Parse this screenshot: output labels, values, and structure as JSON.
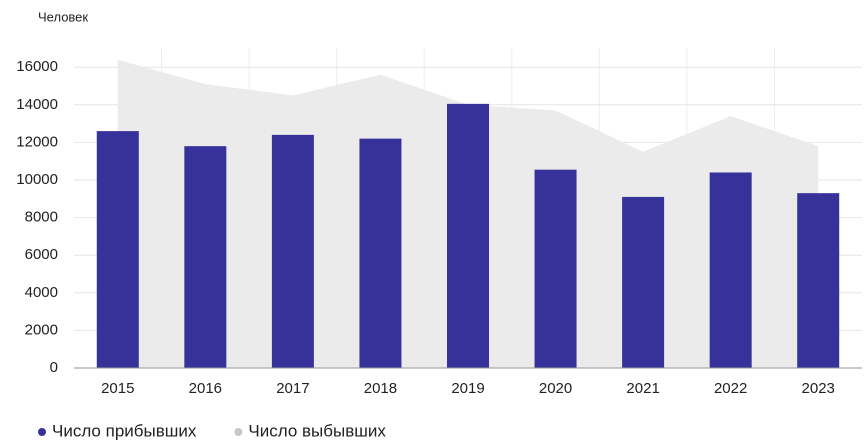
{
  "chart_data": {
    "type": "bar",
    "y_label": "Человек",
    "categories": [
      "2015",
      "2016",
      "2017",
      "2018",
      "2019",
      "2020",
      "2021",
      "2022",
      "2023"
    ],
    "series": [
      {
        "name": "Число прибывших",
        "type": "bar",
        "color": "#373299",
        "values": [
          12600,
          11800,
          12400,
          12200,
          14050,
          10550,
          9100,
          10400,
          9300
        ]
      },
      {
        "name": "Число выбывших",
        "type": "area",
        "color": "#ebebeb",
        "legend_color": "#c8c8c8",
        "values": [
          16400,
          15100,
          14500,
          15600,
          14000,
          13700,
          11500,
          13400,
          11800
        ]
      }
    ],
    "ylim": [
      0,
      17000
    ],
    "yticks": [
      0,
      2000,
      4000,
      6000,
      8000,
      10000,
      12000,
      14000,
      16000
    ],
    "grid": true,
    "legend": "bottom-left"
  }
}
